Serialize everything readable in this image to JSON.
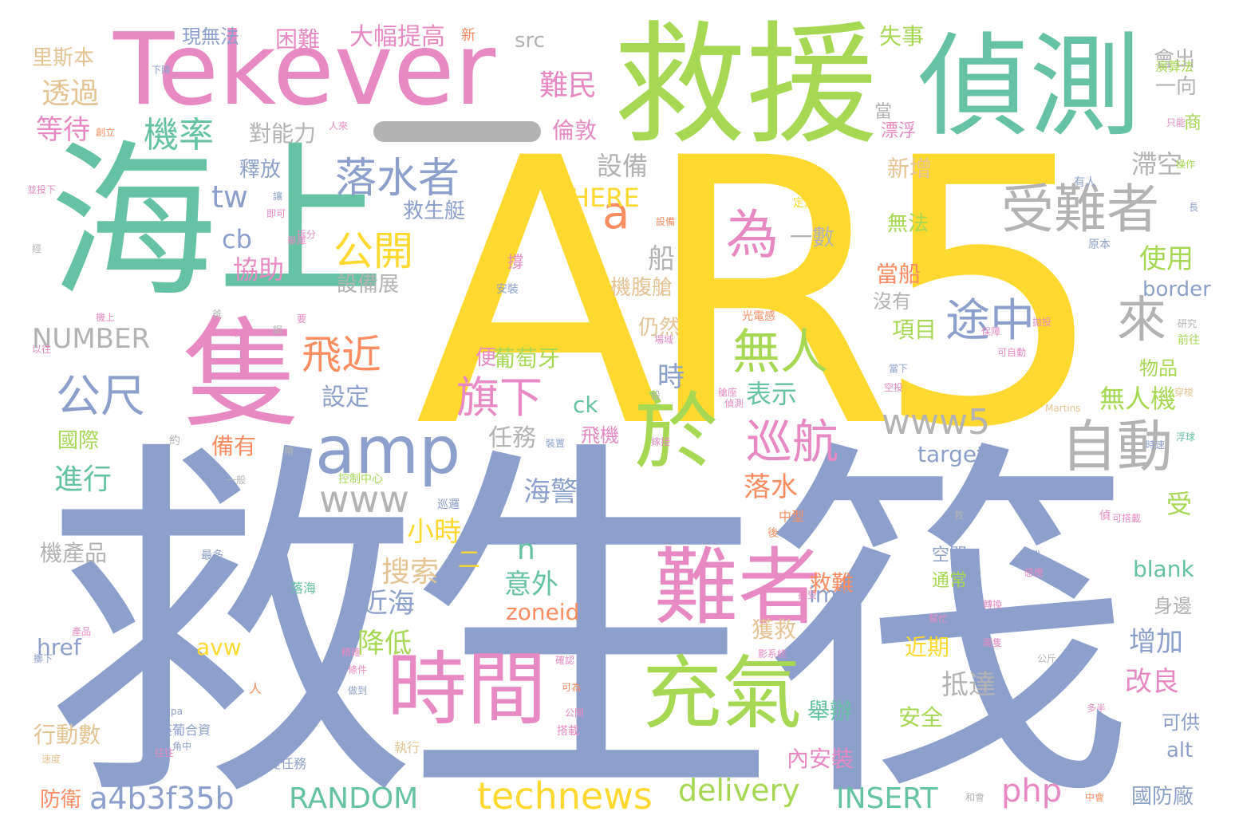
{
  "palette": {
    "yellow": "#ffd92f",
    "blue": "#8da0cb",
    "green": "#a6d854",
    "teal": "#66c2a5",
    "pink": "#e78ac3",
    "orange": "#fc8d62",
    "tan": "#e5c494",
    "gray": "#b3b3b3"
  },
  "words": [
    {
      "text": "AR5",
      "color": "yellow"
    },
    {
      "text": "救生筏",
      "color": "blue"
    },
    {
      "text": "海上",
      "color": "teal"
    },
    {
      "text": "救援",
      "color": "green"
    },
    {
      "text": "Tekever",
      "color": "pink"
    },
    {
      "text": "偵測",
      "color": "teal"
    },
    {
      "text": "隻",
      "color": "pink"
    },
    {
      "text": "於",
      "color": "green"
    },
    {
      "text": "難者",
      "color": "pink"
    },
    {
      "text": "時間",
      "color": "pink"
    },
    {
      "text": "充氣",
      "color": "green"
    },
    {
      "text": "amp",
      "color": "blue"
    },
    {
      "text": "受難者",
      "color": "gray"
    },
    {
      "text": "自動",
      "color": "gray"
    },
    {
      "text": "落水者",
      "color": "blue"
    },
    {
      "text": "technews",
      "color": "yellow"
    },
    {
      "text": "www5",
      "color": "gray"
    },
    {
      "text": "www",
      "color": "gray"
    },
    {
      "text": "公開",
      "color": "yellow"
    },
    {
      "text": "為",
      "color": "pink"
    },
    {
      "text": "途中",
      "color": "blue"
    },
    {
      "text": "來",
      "color": "gray"
    },
    {
      "text": "飛近",
      "color": "orange"
    },
    {
      "text": "無人",
      "color": "green"
    },
    {
      "text": "旗下",
      "color": "pink"
    },
    {
      "text": "巡航",
      "color": "pink"
    },
    {
      "text": "公尺",
      "color": "blue"
    },
    {
      "text": "機率",
      "color": "teal"
    },
    {
      "text": "a",
      "color": "orange"
    },
    {
      "text": "a4b3f35b",
      "color": "blue"
    },
    {
      "text": "RANDOM",
      "color": "teal"
    },
    {
      "text": "delivery",
      "color": "green"
    },
    {
      "text": "INSERT",
      "color": "teal"
    },
    {
      "text": "php",
      "color": "pink"
    },
    {
      "text": "tw",
      "color": "blue"
    },
    {
      "text": "NUMBER",
      "color": "gray"
    },
    {
      "text": "HERE",
      "color": "yellow"
    },
    {
      "text": "cb",
      "color": "blue"
    },
    {
      "text": "n",
      "color": "teal"
    },
    {
      "text": "任務",
      "color": "gray"
    },
    {
      "text": "無人機",
      "color": "green"
    },
    {
      "text": "抵達",
      "color": "gray"
    },
    {
      "text": "海警",
      "color": "blue"
    },
    {
      "text": "小時",
      "color": "yellow"
    },
    {
      "text": "搜索",
      "color": "tan"
    },
    {
      "text": "意外",
      "color": "teal"
    },
    {
      "text": "近海",
      "color": "blue"
    },
    {
      "text": "降低",
      "color": "green"
    },
    {
      "text": "增加",
      "color": "blue"
    },
    {
      "text": "改良",
      "color": "pink"
    },
    {
      "text": "落水",
      "color": "orange"
    },
    {
      "text": "表示",
      "color": "teal"
    },
    {
      "text": "設定",
      "color": "blue"
    },
    {
      "text": "時",
      "color": "blue"
    },
    {
      "text": "協助",
      "color": "pink"
    },
    {
      "text": "對能力",
      "color": "gray"
    },
    {
      "text": "難民",
      "color": "pink"
    },
    {
      "text": "設備",
      "color": "gray"
    },
    {
      "text": "滯空",
      "color": "gray"
    },
    {
      "text": "使用",
      "color": "green"
    },
    {
      "text": "一向",
      "color": "gray"
    },
    {
      "text": "會出",
      "color": "gray"
    },
    {
      "text": "等待",
      "color": "pink"
    },
    {
      "text": "透過",
      "color": "tan"
    },
    {
      "text": "里斯本",
      "color": "tan"
    },
    {
      "text": "現無法",
      "color": "blue"
    },
    {
      "text": "困難",
      "color": "pink"
    },
    {
      "text": "大幅提高",
      "color": "pink"
    },
    {
      "text": "src",
      "color": "gray"
    },
    {
      "text": "失事",
      "color": "green"
    },
    {
      "text": "倫敦",
      "color": "pink"
    },
    {
      "text": "釋放",
      "color": "blue"
    },
    {
      "text": "救生艇",
      "color": "blue"
    },
    {
      "text": "新增",
      "color": "tan"
    },
    {
      "text": "無法",
      "color": "green"
    },
    {
      "text": "一數",
      "color": "gray"
    },
    {
      "text": "船",
      "color": "gray"
    },
    {
      "text": "設備展",
      "color": "gray"
    },
    {
      "text": "機腹艙",
      "color": "tan"
    },
    {
      "text": "當船",
      "color": "orange"
    },
    {
      "text": "沒有",
      "color": "gray"
    },
    {
      "text": "項目",
      "color": "green"
    },
    {
      "text": "仍然",
      "color": "tan"
    },
    {
      "text": "葡萄牙",
      "color": "green"
    },
    {
      "text": "便",
      "color": "pink"
    },
    {
      "text": "物品",
      "color": "green"
    },
    {
      "text": "border",
      "color": "blue"
    },
    {
      "text": "ck",
      "color": "teal"
    },
    {
      "text": "飛機",
      "color": "pink"
    },
    {
      "text": "target",
      "color": "blue"
    },
    {
      "text": "國際",
      "color": "green"
    },
    {
      "text": "備有",
      "color": "orange"
    },
    {
      "text": "進行",
      "color": "teal"
    },
    {
      "text": "機產品",
      "color": "gray"
    },
    {
      "text": "二",
      "color": "yellow"
    },
    {
      "text": "受",
      "color": "green"
    },
    {
      "text": "blank",
      "color": "teal"
    },
    {
      "text": "空間",
      "color": "blue"
    },
    {
      "text": "通常",
      "color": "green"
    },
    {
      "text": "救難",
      "color": "orange"
    },
    {
      "text": "img",
      "color": "blue"
    },
    {
      "text": "zoneid",
      "color": "orange"
    },
    {
      "text": "身邊",
      "color": "gray"
    },
    {
      "text": "獲救",
      "color": "tan"
    },
    {
      "text": "avw",
      "color": "yellow"
    },
    {
      "text": "href",
      "color": "blue"
    },
    {
      "text": "近期",
      "color": "yellow"
    },
    {
      "text": "舉辦",
      "color": "teal"
    },
    {
      "text": "安全",
      "color": "green"
    },
    {
      "text": "可供",
      "color": "blue"
    },
    {
      "text": "alt",
      "color": "blue"
    },
    {
      "text": "行動數",
      "color": "tan"
    },
    {
      "text": "內安裝",
      "color": "pink"
    },
    {
      "text": "防衛",
      "color": "orange"
    },
    {
      "text": "國防廠",
      "color": "blue"
    },
    {
      "text": "當",
      "color": "gray"
    },
    {
      "text": "漂浮",
      "color": "pink"
    },
    {
      "text": "商",
      "color": "green"
    },
    {
      "text": "新",
      "color": "orange"
    },
    {
      "text": "下降",
      "color": "blue"
    },
    {
      "text": "演算法",
      "color": "green"
    },
    {
      "text": "只能",
      "color": "pink"
    },
    {
      "text": "操作",
      "color": "green"
    },
    {
      "text": "有人",
      "color": "blue"
    },
    {
      "text": "長",
      "color": "blue"
    },
    {
      "text": "原本",
      "color": "blue"
    },
    {
      "text": "定翼",
      "color": "yellow"
    },
    {
      "text": "光電感",
      "color": "orange"
    },
    {
      "text": "可自動",
      "color": "pink"
    },
    {
      "text": "前往",
      "color": "green"
    },
    {
      "text": "當下",
      "color": "blue"
    },
    {
      "text": "空投",
      "color": "pink"
    },
    {
      "text": "Martins",
      "color": "tan"
    },
    {
      "text": "中型",
      "color": "orange"
    },
    {
      "text": "後",
      "color": "orange"
    },
    {
      "text": "可搭載",
      "color": "pink"
    },
    {
      "text": "公里",
      "color": "blue"
    },
    {
      "text": "偵",
      "color": "pink"
    },
    {
      "text": "帶載",
      "color": "blue"
    },
    {
      "text": "感應",
      "color": "pink"
    },
    {
      "text": "影系統",
      "color": "pink"
    },
    {
      "text": "公斤",
      "color": "gray"
    },
    {
      "text": "多半",
      "color": "pink"
    },
    {
      "text": "中會",
      "color": "orange"
    },
    {
      "text": "和會",
      "color": "gray"
    },
    {
      "text": "落海",
      "color": "teal"
    },
    {
      "text": "最多",
      "color": "blue"
    },
    {
      "text": "提任務",
      "color": "blue"
    },
    {
      "text": "執行",
      "color": "tan"
    },
    {
      "text": "英葡合資",
      "color": "blue"
    },
    {
      "text": "Filipa",
      "color": "blue"
    },
    {
      "text": "搭載",
      "color": "pink"
    },
    {
      "text": "可為",
      "color": "orange"
    },
    {
      "text": "控制中心",
      "color": "green"
    },
    {
      "text": "巡邏",
      "color": "blue"
    },
    {
      "text": "安裝",
      "color": "blue"
    },
    {
      "text": "撐",
      "color": "pink"
    },
    {
      "text": "設備",
      "color": "orange"
    },
    {
      "text": "即可",
      "color": "pink"
    },
    {
      "text": "讓",
      "color": "blue"
    },
    {
      "text": "人來",
      "color": "pink"
    },
    {
      "text": "創立",
      "color": "orange"
    },
    {
      "text": "機上",
      "color": "pink"
    },
    {
      "text": "以往",
      "color": "pink"
    },
    {
      "text": "往往",
      "color": "pink"
    },
    {
      "text": "速度",
      "color": "tan"
    },
    {
      "text": "角中",
      "color": "blue"
    },
    {
      "text": "人",
      "color": "orange"
    },
    {
      "text": "產品",
      "color": "pink"
    },
    {
      "text": "擲下",
      "color": "blue"
    },
    {
      "text": "約",
      "color": "gray"
    },
    {
      "text": "精確",
      "color": "pink"
    },
    {
      "text": "確認",
      "color": "pink"
    },
    {
      "text": "公開",
      "color": "pink"
    },
    {
      "text": "條件",
      "color": "pink"
    },
    {
      "text": "做到",
      "color": "blue"
    },
    {
      "text": "舉庫",
      "color": "pink"
    },
    {
      "text": "嫁接",
      "color": "pink"
    },
    {
      "text": "裝置",
      "color": "blue"
    },
    {
      "text": "爸",
      "color": "gray"
    },
    {
      "text": "鋼",
      "color": "gray"
    },
    {
      "text": "經",
      "color": "gray"
    },
    {
      "text": "設",
      "color": "gray"
    },
    {
      "text": "並投下",
      "color": "pink"
    },
    {
      "text": "拆分",
      "color": "pink"
    },
    {
      "text": "舉辦",
      "color": "pink"
    },
    {
      "text": "保障",
      "color": "pink"
    },
    {
      "text": "場域",
      "color": "pink"
    },
    {
      "text": "偵測",
      "color": "pink"
    },
    {
      "text": "要",
      "color": "pink"
    },
    {
      "text": "兩隻",
      "color": "pink"
    },
    {
      "text": "一般",
      "color": "gray"
    },
    {
      "text": "帶",
      "color": "gray"
    },
    {
      "text": "救",
      "color": "gray"
    },
    {
      "text": "轉換",
      "color": "pink"
    },
    {
      "text": "艙座",
      "color": "pink"
    },
    {
      "text": "接受",
      "color": "pink"
    },
    {
      "text": "幫忙",
      "color": "pink"
    },
    {
      "text": "穿梭",
      "color": "tan"
    },
    {
      "text": "浮球",
      "color": "teal"
    },
    {
      "text": "拋投",
      "color": "pink"
    },
    {
      "text": "研究",
      "color": "gray"
    },
    {
      "text": "時速",
      "color": "blue"
    }
  ]
}
